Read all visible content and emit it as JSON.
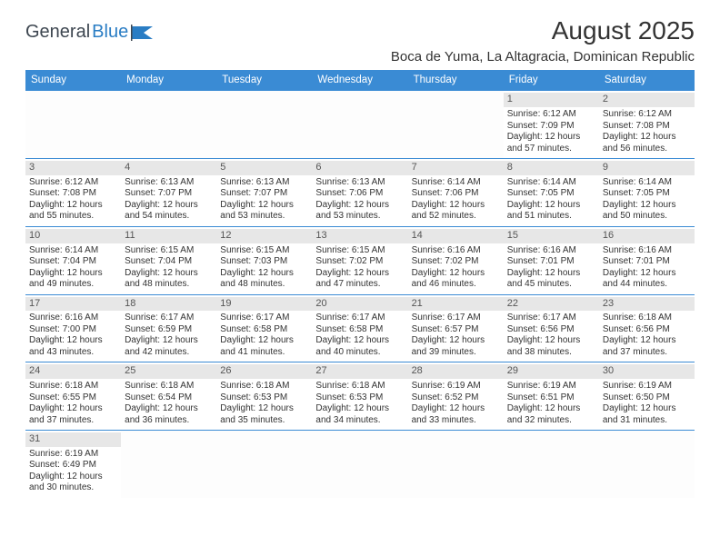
{
  "logo": {
    "word1": "General",
    "word2": "Blue"
  },
  "title": "August 2025",
  "location": "Boca de Yuma, La Altagracia, Dominican Republic",
  "header_bg": "#3a8bd4",
  "header_fg": "#ffffff",
  "daynum_bg": "#e7e7e7",
  "cell_border": "#3a8bd4",
  "days": [
    "Sunday",
    "Monday",
    "Tuesday",
    "Wednesday",
    "Thursday",
    "Friday",
    "Saturday"
  ],
  "weeks": [
    [
      null,
      null,
      null,
      null,
      null,
      {
        "n": "1",
        "sr": "Sunrise: 6:12 AM",
        "ss": "Sunset: 7:09 PM",
        "d1": "Daylight: 12 hours",
        "d2": "and 57 minutes."
      },
      {
        "n": "2",
        "sr": "Sunrise: 6:12 AM",
        "ss": "Sunset: 7:08 PM",
        "d1": "Daylight: 12 hours",
        "d2": "and 56 minutes."
      }
    ],
    [
      {
        "n": "3",
        "sr": "Sunrise: 6:12 AM",
        "ss": "Sunset: 7:08 PM",
        "d1": "Daylight: 12 hours",
        "d2": "and 55 minutes."
      },
      {
        "n": "4",
        "sr": "Sunrise: 6:13 AM",
        "ss": "Sunset: 7:07 PM",
        "d1": "Daylight: 12 hours",
        "d2": "and 54 minutes."
      },
      {
        "n": "5",
        "sr": "Sunrise: 6:13 AM",
        "ss": "Sunset: 7:07 PM",
        "d1": "Daylight: 12 hours",
        "d2": "and 53 minutes."
      },
      {
        "n": "6",
        "sr": "Sunrise: 6:13 AM",
        "ss": "Sunset: 7:06 PM",
        "d1": "Daylight: 12 hours",
        "d2": "and 53 minutes."
      },
      {
        "n": "7",
        "sr": "Sunrise: 6:14 AM",
        "ss": "Sunset: 7:06 PM",
        "d1": "Daylight: 12 hours",
        "d2": "and 52 minutes."
      },
      {
        "n": "8",
        "sr": "Sunrise: 6:14 AM",
        "ss": "Sunset: 7:05 PM",
        "d1": "Daylight: 12 hours",
        "d2": "and 51 minutes."
      },
      {
        "n": "9",
        "sr": "Sunrise: 6:14 AM",
        "ss": "Sunset: 7:05 PM",
        "d1": "Daylight: 12 hours",
        "d2": "and 50 minutes."
      }
    ],
    [
      {
        "n": "10",
        "sr": "Sunrise: 6:14 AM",
        "ss": "Sunset: 7:04 PM",
        "d1": "Daylight: 12 hours",
        "d2": "and 49 minutes."
      },
      {
        "n": "11",
        "sr": "Sunrise: 6:15 AM",
        "ss": "Sunset: 7:04 PM",
        "d1": "Daylight: 12 hours",
        "d2": "and 48 minutes."
      },
      {
        "n": "12",
        "sr": "Sunrise: 6:15 AM",
        "ss": "Sunset: 7:03 PM",
        "d1": "Daylight: 12 hours",
        "d2": "and 48 minutes."
      },
      {
        "n": "13",
        "sr": "Sunrise: 6:15 AM",
        "ss": "Sunset: 7:02 PM",
        "d1": "Daylight: 12 hours",
        "d2": "and 47 minutes."
      },
      {
        "n": "14",
        "sr": "Sunrise: 6:16 AM",
        "ss": "Sunset: 7:02 PM",
        "d1": "Daylight: 12 hours",
        "d2": "and 46 minutes."
      },
      {
        "n": "15",
        "sr": "Sunrise: 6:16 AM",
        "ss": "Sunset: 7:01 PM",
        "d1": "Daylight: 12 hours",
        "d2": "and 45 minutes."
      },
      {
        "n": "16",
        "sr": "Sunrise: 6:16 AM",
        "ss": "Sunset: 7:01 PM",
        "d1": "Daylight: 12 hours",
        "d2": "and 44 minutes."
      }
    ],
    [
      {
        "n": "17",
        "sr": "Sunrise: 6:16 AM",
        "ss": "Sunset: 7:00 PM",
        "d1": "Daylight: 12 hours",
        "d2": "and 43 minutes."
      },
      {
        "n": "18",
        "sr": "Sunrise: 6:17 AM",
        "ss": "Sunset: 6:59 PM",
        "d1": "Daylight: 12 hours",
        "d2": "and 42 minutes."
      },
      {
        "n": "19",
        "sr": "Sunrise: 6:17 AM",
        "ss": "Sunset: 6:58 PM",
        "d1": "Daylight: 12 hours",
        "d2": "and 41 minutes."
      },
      {
        "n": "20",
        "sr": "Sunrise: 6:17 AM",
        "ss": "Sunset: 6:58 PM",
        "d1": "Daylight: 12 hours",
        "d2": "and 40 minutes."
      },
      {
        "n": "21",
        "sr": "Sunrise: 6:17 AM",
        "ss": "Sunset: 6:57 PM",
        "d1": "Daylight: 12 hours",
        "d2": "and 39 minutes."
      },
      {
        "n": "22",
        "sr": "Sunrise: 6:17 AM",
        "ss": "Sunset: 6:56 PM",
        "d1": "Daylight: 12 hours",
        "d2": "and 38 minutes."
      },
      {
        "n": "23",
        "sr": "Sunrise: 6:18 AM",
        "ss": "Sunset: 6:56 PM",
        "d1": "Daylight: 12 hours",
        "d2": "and 37 minutes."
      }
    ],
    [
      {
        "n": "24",
        "sr": "Sunrise: 6:18 AM",
        "ss": "Sunset: 6:55 PM",
        "d1": "Daylight: 12 hours",
        "d2": "and 37 minutes."
      },
      {
        "n": "25",
        "sr": "Sunrise: 6:18 AM",
        "ss": "Sunset: 6:54 PM",
        "d1": "Daylight: 12 hours",
        "d2": "and 36 minutes."
      },
      {
        "n": "26",
        "sr": "Sunrise: 6:18 AM",
        "ss": "Sunset: 6:53 PM",
        "d1": "Daylight: 12 hours",
        "d2": "and 35 minutes."
      },
      {
        "n": "27",
        "sr": "Sunrise: 6:18 AM",
        "ss": "Sunset: 6:53 PM",
        "d1": "Daylight: 12 hours",
        "d2": "and 34 minutes."
      },
      {
        "n": "28",
        "sr": "Sunrise: 6:19 AM",
        "ss": "Sunset: 6:52 PM",
        "d1": "Daylight: 12 hours",
        "d2": "and 33 minutes."
      },
      {
        "n": "29",
        "sr": "Sunrise: 6:19 AM",
        "ss": "Sunset: 6:51 PM",
        "d1": "Daylight: 12 hours",
        "d2": "and 32 minutes."
      },
      {
        "n": "30",
        "sr": "Sunrise: 6:19 AM",
        "ss": "Sunset: 6:50 PM",
        "d1": "Daylight: 12 hours",
        "d2": "and 31 minutes."
      }
    ],
    [
      {
        "n": "31",
        "sr": "Sunrise: 6:19 AM",
        "ss": "Sunset: 6:49 PM",
        "d1": "Daylight: 12 hours",
        "d2": "and 30 minutes."
      },
      null,
      null,
      null,
      null,
      null,
      null
    ]
  ]
}
